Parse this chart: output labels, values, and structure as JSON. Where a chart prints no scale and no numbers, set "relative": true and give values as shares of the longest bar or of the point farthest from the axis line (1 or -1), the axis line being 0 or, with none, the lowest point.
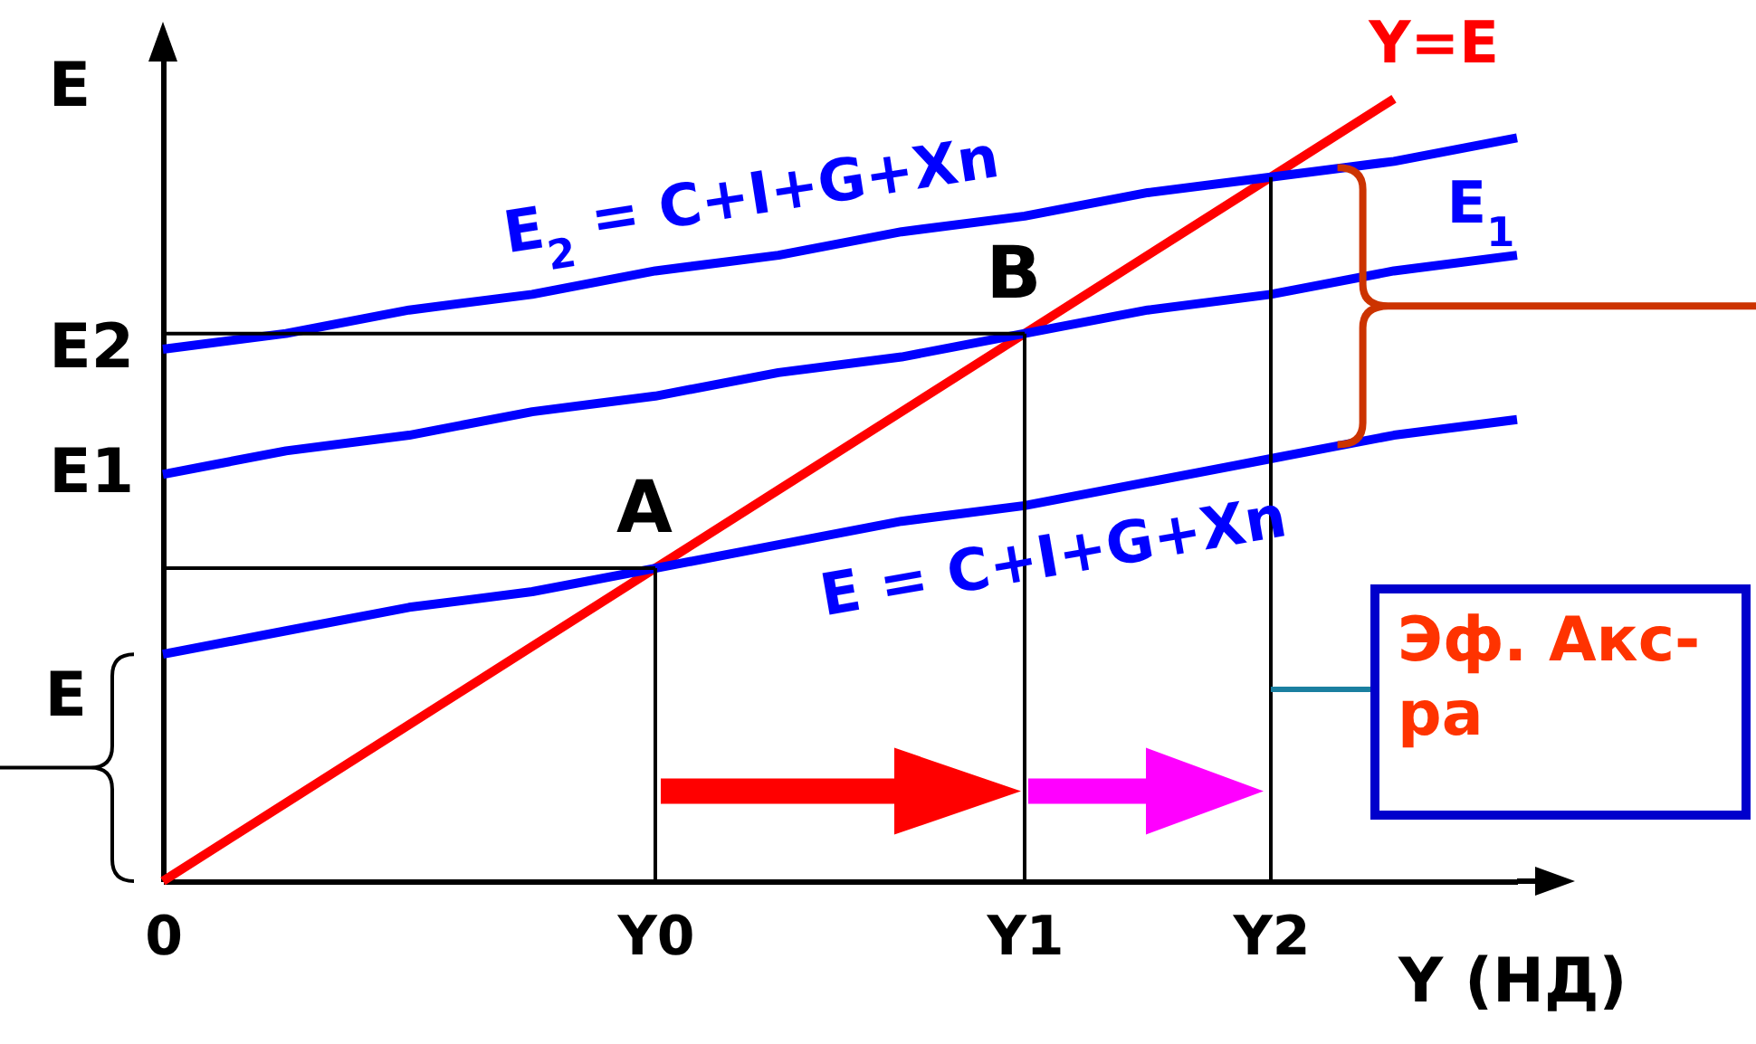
{
  "chart_data": {
    "type": "line",
    "relative": true,
    "xlabel": "Y (НД)",
    "ylabel": "E",
    "categories": [
      "0",
      null,
      null,
      null,
      "Y0",
      null,
      null,
      "Y1",
      null,
      "Y2",
      null,
      null
    ],
    "series": [
      {
        "name": "Y=E",
        "color": "#ff0000",
        "values": [
          0,
          0.1,
          0.2,
          0.3,
          0.4,
          0.5,
          0.6,
          0.7,
          0.8,
          0.9,
          1,
          null
        ]
      },
      {
        "name": "E = C+I+G+Xn",
        "color": "#0000ff",
        "values": [
          0.29,
          0.32,
          0.35,
          0.37,
          0.4,
          0.43,
          0.46,
          0.48,
          0.51,
          0.54,
          0.57,
          0.59
        ]
      },
      {
        "name": "E$_{1}$",
        "color": "#0000ff",
        "values": [
          0.52,
          0.55,
          0.57,
          0.6,
          0.62,
          0.65,
          0.67,
          0.7,
          0.73,
          0.75,
          0.78,
          0.8
        ]
      },
      {
        "name": "E$_{2}$ = C+I+G+Xn",
        "color": "#0000ff",
        "values": [
          0.68,
          0.7,
          0.73,
          0.75,
          0.78,
          0.8,
          0.83,
          0.85,
          0.88,
          0.9,
          0.92,
          0.95
        ]
      }
    ],
    "ref_lines": [
      {
        "axis": "x",
        "value": "Y0",
        "color": "#000000"
      },
      {
        "axis": "x",
        "value": "Y1",
        "color": "#000000"
      },
      {
        "axis": "x",
        "value": "Y2",
        "color": "#000000"
      },
      {
        "axis": "y",
        "value": 0.4,
        "color": "#000000"
      },
      {
        "axis": "y",
        "value": 0.7,
        "color": "#000000"
      }
    ],
    "annotations": [
      {
        "text": "A",
        "x": "Y0",
        "y": 0.4
      },
      {
        "text": "B",
        "x": "Y1",
        "y": 0.7
      },
      {
        "text": "E2",
        "x": "0",
        "y": 0.68
      },
      {
        "text": "E1",
        "x": "0",
        "y": 0.52
      },
      "E",
      "Эф. Акс-ра"
    ]
  }
}
